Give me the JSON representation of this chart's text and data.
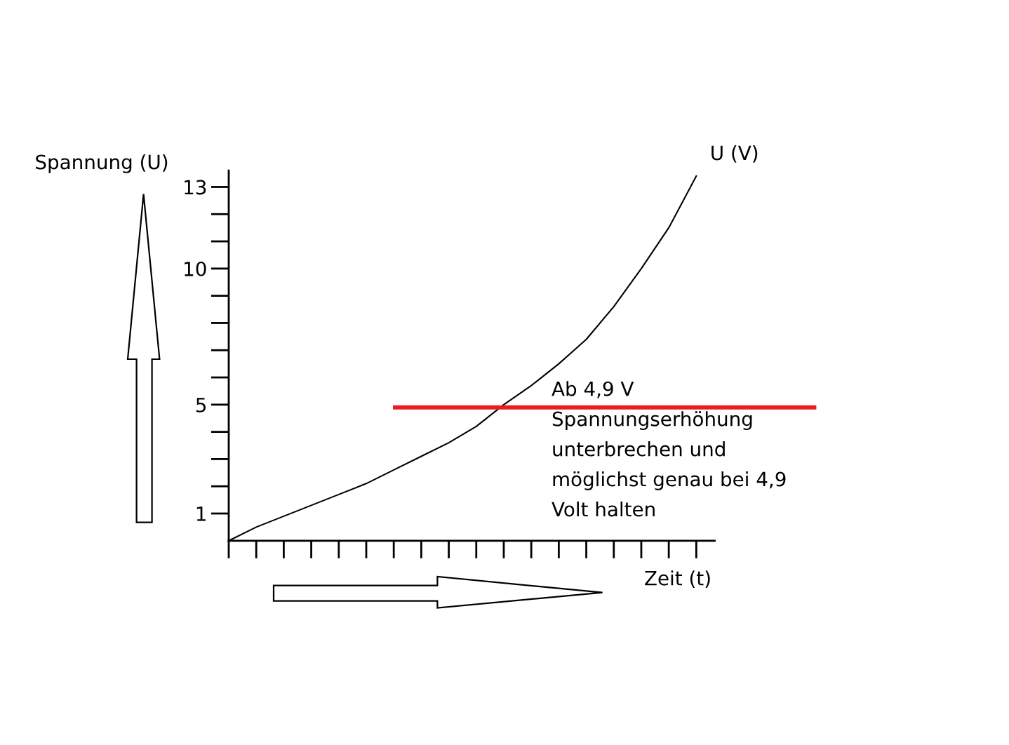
{
  "chart_data": {
    "type": "line",
    "xlabel": "Zeit (t)",
    "ylabel": "Spannung (U)",
    "categories": [
      null,
      null,
      null,
      null,
      null,
      null,
      null,
      null,
      null,
      null,
      null,
      null,
      null,
      null,
      null,
      null,
      null,
      null
    ],
    "series": [
      {
        "name": "U (V)",
        "color": "#000000",
        "values": [
          0,
          0.5,
          0.9,
          1.3,
          1.7,
          2.1,
          2.6,
          3.1,
          3.6,
          4.2,
          5.0,
          5.7,
          6.5,
          7.4,
          8.6,
          10,
          11.5,
          13.4
        ]
      }
    ],
    "ylim": [
      0,
      13.6
    ],
    "yticks": [
      1,
      {
        "value": 2,
        "label": null
      },
      {
        "value": 3,
        "label": null
      },
      {
        "value": 4,
        "label": null
      },
      5,
      {
        "value": 6,
        "label": null
      },
      {
        "value": 7,
        "label": null
      },
      {
        "value": 8,
        "label": null
      },
      {
        "value": 9,
        "label": null
      },
      10,
      {
        "value": 11,
        "label": null
      },
      {
        "value": 12,
        "label": null
      },
      13
    ],
    "ref_lines": [
      {
        "axis": "y",
        "value": 4.9,
        "label": "Ab 4,9 V\nSpannungserhöhung\nunterbrechen und\nmöglichst genau bei 4,9\nVolt halten",
        "color": "#ed1c24"
      }
    ],
    "tick_labels": "y"
  }
}
